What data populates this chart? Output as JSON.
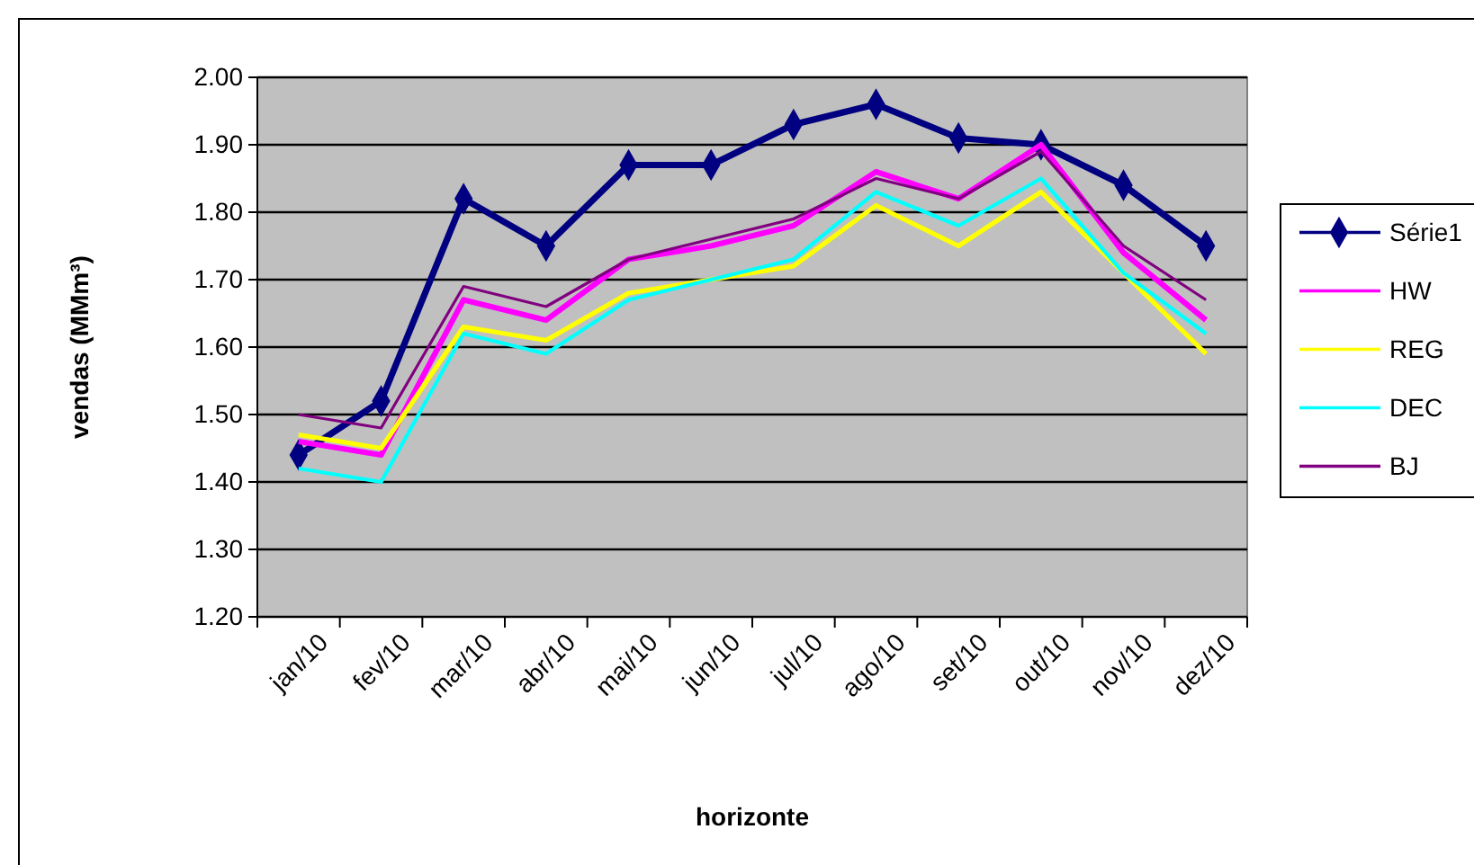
{
  "chart_data": {
    "type": "line",
    "xlabel": "horizonte",
    "ylabel": "vendas (MMm³)",
    "categories": [
      "jan/10",
      "fev/10",
      "mar/10",
      "abr/10",
      "mai/10",
      "jun/10",
      "jul/10",
      "ago/10",
      "set/10",
      "out/10",
      "nov/10",
      "dez/10"
    ],
    "series": [
      {
        "name": "Série1",
        "color": "#000080",
        "marker": "diamond",
        "values": [
          1.44,
          1.52,
          1.82,
          1.75,
          1.87,
          1.87,
          1.93,
          1.96,
          1.91,
          1.9,
          1.84,
          1.75
        ]
      },
      {
        "name": "HW",
        "color": "#ff00ff",
        "values": [
          1.46,
          1.44,
          1.67,
          1.64,
          1.73,
          1.75,
          1.78,
          1.86,
          1.82,
          1.9,
          1.74,
          1.64
        ]
      },
      {
        "name": "REG",
        "color": "#ffff00",
        "values": [
          1.47,
          1.45,
          1.63,
          1.61,
          1.68,
          1.7,
          1.72,
          1.81,
          1.75,
          1.83,
          1.71,
          1.59
        ]
      },
      {
        "name": "DEC",
        "color": "#00ffff",
        "values": [
          1.42,
          1.4,
          1.62,
          1.59,
          1.67,
          1.7,
          1.73,
          1.83,
          1.78,
          1.85,
          1.71,
          1.62
        ]
      },
      {
        "name": "BJ",
        "color": "#800080",
        "values": [
          1.5,
          1.48,
          1.69,
          1.66,
          1.73,
          1.76,
          1.79,
          1.85,
          1.82,
          1.89,
          1.75,
          1.67
        ]
      }
    ],
    "ylim": [
      1.2,
      2.0
    ],
    "yticks": [
      {
        "value": 1.2,
        "label": "1.20"
      },
      {
        "value": 1.3,
        "label": "1.30"
      },
      {
        "value": 1.4,
        "label": "1.40"
      },
      {
        "value": 1.5,
        "label": "1.50"
      },
      {
        "value": 1.6,
        "label": "1.60"
      },
      {
        "value": 1.7,
        "label": "1.70"
      },
      {
        "value": 1.8,
        "label": "1.80"
      },
      {
        "value": 1.9,
        "label": "1.90"
      },
      {
        "value": 2.0,
        "label": "2.00"
      }
    ],
    "grid": "y",
    "legend": "right"
  }
}
